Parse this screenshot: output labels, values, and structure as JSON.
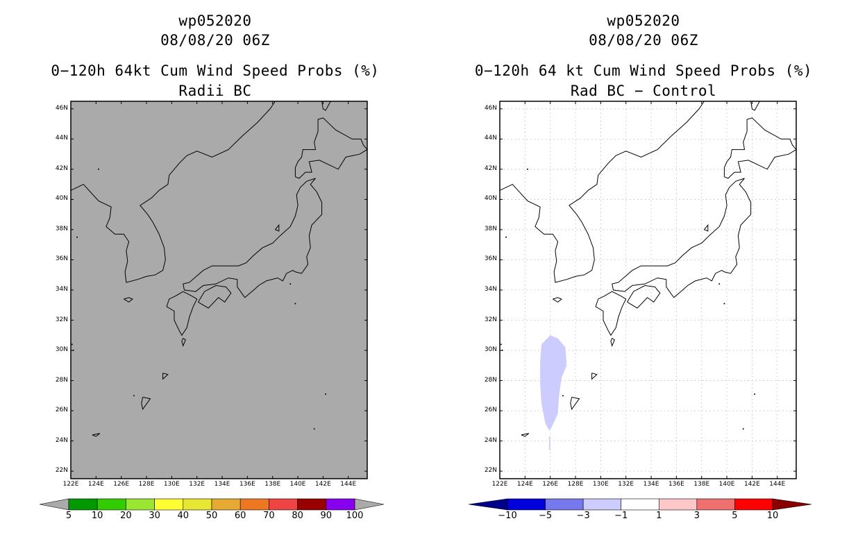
{
  "panels": [
    {
      "id": "left",
      "storm_id": "wp052020",
      "datetime": "08/08/20 06Z",
      "product": "0−120h 64kt Cum Wind Speed Probs (%)",
      "subtitle": "Radii BC",
      "map_fill": "#aaaaaa",
      "colorbar": {
        "colors": [
          "#009900",
          "#33cc00",
          "#99e633",
          "#ffff33",
          "#e6e633",
          "#e6aa33",
          "#ee7722",
          "#ee4444",
          "#990000",
          "#8800ee"
        ],
        "end_colors": [
          "#aaaaaa",
          "#aaaaaa"
        ],
        "labels": [
          "5",
          "10",
          "20",
          "30",
          "40",
          "50",
          "60",
          "70",
          "80",
          "90",
          "100"
        ]
      }
    },
    {
      "id": "right",
      "storm_id": "wp052020",
      "datetime": "08/08/20 06Z",
      "product": "0−120h 64 kt Cum Wind Speed Probs (%)",
      "subtitle": "Rad BC − Control",
      "map_fill": "#ffffff",
      "colorbar": {
        "colors": [
          "#0000dd",
          "#7777ee",
          "#ccccff",
          "#ffffff",
          "#ffc8c8",
          "#f07070",
          "#ff0000"
        ],
        "end_colors": [
          "#000088",
          "#880000"
        ],
        "labels": [
          "−10",
          "−5",
          "−3",
          "−1",
          "1",
          "3",
          "5",
          "10"
        ]
      }
    }
  ],
  "latitude_labels": [
    "46N",
    "44N",
    "42N",
    "40N",
    "38N",
    "36N",
    "34N",
    "32N",
    "30N",
    "28N",
    "26N",
    "24N",
    "22N"
  ],
  "longitude_labels": [
    "122E",
    "124E",
    "126E",
    "128E",
    "130E",
    "132E",
    "134E",
    "136E",
    "138E",
    "140E",
    "142E",
    "144E"
  ],
  "chart_data": {
    "type": "map",
    "region": {
      "lon_range": [
        122,
        145.5
      ],
      "lat_range": [
        21.5,
        46.5
      ]
    },
    "difference_shading": {
      "value_range": "-3 to -1",
      "color": "#ccccff",
      "lon_range": [
        125.2,
        127.3
      ],
      "lat_range": [
        24.7,
        31.0
      ]
    }
  }
}
